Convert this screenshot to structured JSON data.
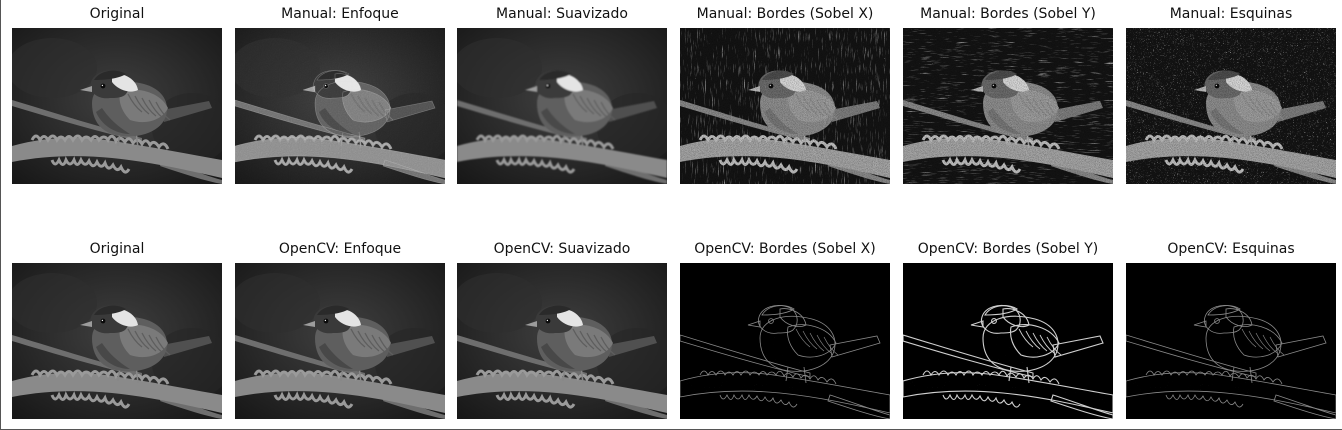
{
  "figure": {
    "rows": [
      {
        "panels": [
          {
            "title": "Original",
            "style": "original"
          },
          {
            "title": "Manual: Enfoque",
            "style": "sharpen"
          },
          {
            "title": "Manual: Suavizado",
            "style": "smooth"
          },
          {
            "title": "Manual: Bordes (Sobel X)",
            "style": "noisy-x"
          },
          {
            "title": "Manual: Bordes (Sobel Y)",
            "style": "noisy-y"
          },
          {
            "title": "Manual: Esquinas",
            "style": "noisy-c"
          }
        ]
      },
      {
        "panels": [
          {
            "title": "Original",
            "style": "original"
          },
          {
            "title": "OpenCV: Enfoque",
            "style": "original"
          },
          {
            "title": "OpenCV: Suavizado",
            "style": "original"
          },
          {
            "title": "OpenCV: Bordes (Sobel X)",
            "style": "edge-dim"
          },
          {
            "title": "OpenCV: Bordes (Sobel Y)",
            "style": "edge"
          },
          {
            "title": "OpenCV: Esquinas",
            "style": "edge-dim"
          }
        ]
      }
    ]
  }
}
